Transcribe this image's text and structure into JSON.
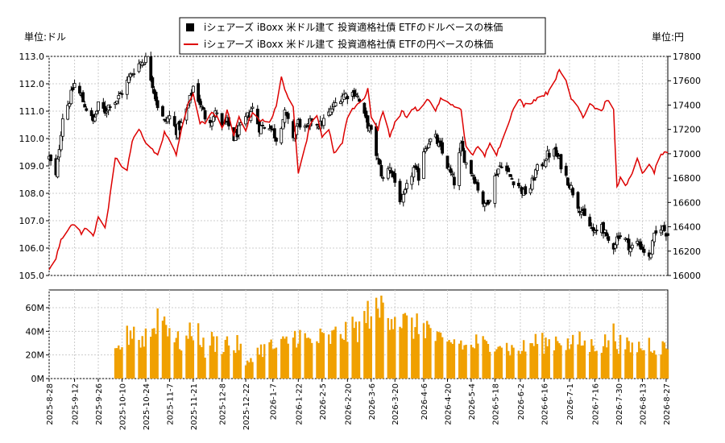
{
  "legend": {
    "items": [
      {
        "name": "iシェアーズ iBoxx 米ドル建て 投資適格社債 ETFのドルベースの株価",
        "color": "#000000",
        "marker": "square"
      },
      {
        "name": "iシェアーズ iBoxx 米ドル建て 投資適格社債 ETFの円ベースの株価",
        "color": "#dd0000",
        "marker": "line"
      }
    ]
  },
  "chart_data": [
    {
      "type": "candlestick+line",
      "left_unit_label": "単位:ドル",
      "right_unit_label": "単位:円",
      "ylim_left": [
        105.0,
        113.0
      ],
      "ylim_right": [
        16000,
        17800
      ],
      "yticks_left": [
        "105.0",
        "106.0",
        "107.0",
        "108.0",
        "109.0",
        "110.0",
        "111.0",
        "112.0",
        "113.0"
      ],
      "yticks_right": [
        "16000",
        "16200",
        "16400",
        "16600",
        "16800",
        "17000",
        "17200",
        "17400",
        "17600",
        "17800"
      ],
      "x_start": "2025-08-28",
      "x_end": "2026-08-28",
      "xticks": [
        "2025-8-28",
        "2025-9-12",
        "2025-9-26",
        "2025-10-10",
        "2025-10-24",
        "2025-11-7",
        "2025-11-21",
        "2025-12-8",
        "2025-12-22",
        "2026-1-7",
        "2026-1-22",
        "2026-2-5",
        "2026-2-20",
        "2026-3-6",
        "2026-3-20",
        "2026-4-6",
        "2026-4-20",
        "2026-5-4",
        "2026-5-18",
        "2026-6-2",
        "2026-6-16",
        "2026-7-1",
        "2026-7-16",
        "2026-7-30",
        "2026-8-13",
        "2026-8-27"
      ],
      "usd_close_keypoints": [
        [
          "2025-08-28",
          109.3
        ],
        [
          "2025-09-01",
          108.6
        ],
        [
          "2025-09-03",
          109.7
        ],
        [
          "2025-09-05",
          110.8
        ],
        [
          "2025-09-09",
          111.4
        ],
        [
          "2025-09-12",
          112.0
        ],
        [
          "2025-09-16",
          111.5
        ],
        [
          "2025-09-19",
          111.1
        ],
        [
          "2025-09-23",
          110.6
        ],
        [
          "2025-09-26",
          111.2
        ],
        [
          "2025-09-30",
          111.0
        ],
        [
          "2025-10-03",
          111.3
        ],
        [
          "2025-10-07",
          111.4
        ],
        [
          "2025-10-10",
          111.7
        ],
        [
          "2025-10-14",
          112.2
        ],
        [
          "2025-10-17",
          112.5
        ],
        [
          "2025-10-21",
          112.8
        ],
        [
          "2025-10-24",
          112.9
        ],
        [
          "2025-10-28",
          112.0
        ],
        [
          "2025-10-31",
          111.2
        ],
        [
          "2025-11-04",
          110.6
        ],
        [
          "2025-11-07",
          110.8
        ],
        [
          "2025-11-11",
          110.3
        ],
        [
          "2025-11-14",
          110.5
        ],
        [
          "2025-11-18",
          111.2
        ],
        [
          "2025-11-21",
          111.9
        ],
        [
          "2025-11-25",
          111.3
        ],
        [
          "2025-11-28",
          110.8
        ],
        [
          "2025-12-02",
          110.7
        ],
        [
          "2025-12-05",
          111.0
        ],
        [
          "2025-12-08",
          110.4
        ],
        [
          "2025-12-11",
          110.6
        ],
        [
          "2025-12-15",
          110.0
        ],
        [
          "2025-12-18",
          110.3
        ],
        [
          "2025-12-22",
          110.7
        ],
        [
          "2025-12-26",
          111.1
        ],
        [
          "2025-12-30",
          110.4
        ],
        [
          "2026-01-05",
          110.5
        ],
        [
          "2026-01-09",
          110.0
        ],
        [
          "2026-01-14",
          110.9
        ],
        [
          "2026-01-19",
          110.1
        ],
        [
          "2026-01-22",
          110.6
        ],
        [
          "2026-01-27",
          110.3
        ],
        [
          "2026-01-30",
          110.7
        ],
        [
          "2026-02-04",
          110.5
        ],
        [
          "2026-02-09",
          110.9
        ],
        [
          "2026-02-12",
          111.2
        ],
        [
          "2026-02-17",
          111.6
        ],
        [
          "2026-02-20",
          111.6
        ],
        [
          "2026-02-25",
          111.7
        ],
        [
          "2026-03-02",
          110.8
        ],
        [
          "2026-03-06",
          110.2
        ],
        [
          "2026-03-10",
          109.2
        ],
        [
          "2026-03-13",
          108.5
        ],
        [
          "2026-03-17",
          109.0
        ],
        [
          "2026-03-20",
          108.4
        ],
        [
          "2026-03-24",
          107.6
        ],
        [
          "2026-03-27",
          108.2
        ],
        [
          "2026-03-31",
          108.9
        ],
        [
          "2026-04-03",
          108.6
        ],
        [
          "2026-04-06",
          109.6
        ],
        [
          "2026-04-09",
          109.9
        ],
        [
          "2026-04-13",
          110.0
        ],
        [
          "2026-04-16",
          109.6
        ],
        [
          "2026-04-20",
          109.0
        ],
        [
          "2026-04-24",
          108.4
        ],
        [
          "2026-04-28",
          109.7
        ],
        [
          "2026-05-01",
          109.1
        ],
        [
          "2026-05-05",
          108.7
        ],
        [
          "2026-05-08",
          108.2
        ],
        [
          "2026-05-12",
          107.5
        ],
        [
          "2026-05-15",
          107.9
        ],
        [
          "2026-05-19",
          108.8
        ],
        [
          "2026-05-22",
          109.1
        ],
        [
          "2026-05-27",
          108.6
        ],
        [
          "2026-06-01",
          108.3
        ],
        [
          "2026-06-04",
          108.0
        ],
        [
          "2026-06-08",
          108.2
        ],
        [
          "2026-06-11",
          108.8
        ],
        [
          "2026-06-15",
          109.1
        ],
        [
          "2026-06-18",
          109.4
        ],
        [
          "2026-06-22",
          109.5
        ],
        [
          "2026-06-25",
          109.2
        ],
        [
          "2026-06-29",
          108.6
        ],
        [
          "2026-07-02",
          108.2
        ],
        [
          "2026-07-06",
          107.6
        ],
        [
          "2026-07-09",
          107.2
        ],
        [
          "2026-07-13",
          106.8
        ],
        [
          "2026-07-16",
          106.5
        ],
        [
          "2026-07-20",
          106.9
        ],
        [
          "2026-07-23",
          106.3
        ],
        [
          "2026-07-27",
          106.1
        ],
        [
          "2026-07-30",
          106.5
        ],
        [
          "2026-08-03",
          106.3
        ],
        [
          "2026-08-06",
          106.0
        ],
        [
          "2026-08-10",
          106.2
        ],
        [
          "2026-08-13",
          106.0
        ],
        [
          "2026-08-17",
          105.6
        ],
        [
          "2026-08-20",
          106.4
        ],
        [
          "2026-08-24",
          106.8
        ],
        [
          "2026-08-28",
          106.5
        ]
      ],
      "jpy_line_keypoints": [
        [
          "2025-08-28",
          16050
        ],
        [
          "2025-09-01",
          16150
        ],
        [
          "2025-09-04",
          16300
        ],
        [
          "2025-09-08",
          16380
        ],
        [
          "2025-09-12",
          16420
        ],
        [
          "2025-09-16",
          16350
        ],
        [
          "2025-09-19",
          16390
        ],
        [
          "2025-09-23",
          16320
        ],
        [
          "2025-09-26",
          16490
        ],
        [
          "2025-09-30",
          16400
        ],
        [
          "2025-10-02",
          16550
        ],
        [
          "2025-10-06",
          16970
        ],
        [
          "2025-10-09",
          16900
        ],
        [
          "2025-10-13",
          16870
        ],
        [
          "2025-10-16",
          17100
        ],
        [
          "2025-10-20",
          17200
        ],
        [
          "2025-10-24",
          17100
        ],
        [
          "2025-10-27",
          17050
        ],
        [
          "2025-10-31",
          16980
        ],
        [
          "2025-11-04",
          17180
        ],
        [
          "2025-11-07",
          17100
        ],
        [
          "2025-11-11",
          17000
        ],
        [
          "2025-11-14",
          17200
        ],
        [
          "2025-11-18",
          17400
        ],
        [
          "2025-11-21",
          17500
        ],
        [
          "2025-11-25",
          17250
        ],
        [
          "2025-11-28",
          17250
        ],
        [
          "2025-12-02",
          17350
        ],
        [
          "2025-12-05",
          17300
        ],
        [
          "2025-12-08",
          17200
        ],
        [
          "2025-12-11",
          17350
        ],
        [
          "2025-12-15",
          17150
        ],
        [
          "2025-12-18",
          17300
        ],
        [
          "2025-12-22",
          17200
        ],
        [
          "2025-12-26",
          17350
        ],
        [
          "2025-12-30",
          17280
        ],
        [
          "2026-01-05",
          17250
        ],
        [
          "2026-01-09",
          17400
        ],
        [
          "2026-01-12",
          17620
        ],
        [
          "2026-01-14",
          17520
        ],
        [
          "2026-01-19",
          17400
        ],
        [
          "2026-01-22",
          16850
        ],
        [
          "2026-01-26",
          17050
        ],
        [
          "2026-01-29",
          17250
        ],
        [
          "2026-02-02",
          17300
        ],
        [
          "2026-02-05",
          17150
        ],
        [
          "2026-02-09",
          17200
        ],
        [
          "2026-02-12",
          17000
        ],
        [
          "2026-02-17",
          17100
        ],
        [
          "2026-02-20",
          17300
        ],
        [
          "2026-02-25",
          17400
        ],
        [
          "2026-03-02",
          17450
        ],
        [
          "2026-03-04",
          17550
        ],
        [
          "2026-03-06",
          17300
        ],
        [
          "2026-03-10",
          17200
        ],
        [
          "2026-03-13",
          17350
        ],
        [
          "2026-03-17",
          17150
        ],
        [
          "2026-03-20",
          17250
        ],
        [
          "2026-03-24",
          17350
        ],
        [
          "2026-03-27",
          17300
        ],
        [
          "2026-03-31",
          17380
        ],
        [
          "2026-04-03",
          17350
        ],
        [
          "2026-04-06",
          17400
        ],
        [
          "2026-04-09",
          17450
        ],
        [
          "2026-04-13",
          17350
        ],
        [
          "2026-04-16",
          17450
        ],
        [
          "2026-04-20",
          17420
        ],
        [
          "2026-04-24",
          17400
        ],
        [
          "2026-04-28",
          17350
        ],
        [
          "2026-05-01",
          17050
        ],
        [
          "2026-05-05",
          17000
        ],
        [
          "2026-05-08",
          17050
        ],
        [
          "2026-05-12",
          16980
        ],
        [
          "2026-05-15",
          17100
        ],
        [
          "2026-05-19",
          17000
        ],
        [
          "2026-05-22",
          17100
        ],
        [
          "2026-05-27",
          17300
        ],
        [
          "2026-06-01",
          17450
        ],
        [
          "2026-06-04",
          17400
        ],
        [
          "2026-06-08",
          17420
        ],
        [
          "2026-06-11",
          17450
        ],
        [
          "2026-06-15",
          17480
        ],
        [
          "2026-06-18",
          17500
        ],
        [
          "2026-06-22",
          17600
        ],
        [
          "2026-06-25",
          17680
        ],
        [
          "2026-06-29",
          17600
        ],
        [
          "2026-07-02",
          17450
        ],
        [
          "2026-07-06",
          17400
        ],
        [
          "2026-07-09",
          17300
        ],
        [
          "2026-07-13",
          17420
        ],
        [
          "2026-07-16",
          17380
        ],
        [
          "2026-07-20",
          17350
        ],
        [
          "2026-07-23",
          17450
        ],
        [
          "2026-07-27",
          17350
        ],
        [
          "2026-07-29",
          16720
        ],
        [
          "2026-07-31",
          16800
        ],
        [
          "2026-08-03",
          16750
        ],
        [
          "2026-08-06",
          16800
        ],
        [
          "2026-08-10",
          16950
        ],
        [
          "2026-08-13",
          16850
        ],
        [
          "2026-08-17",
          16900
        ],
        [
          "2026-08-20",
          16850
        ],
        [
          "2026-08-24",
          17000
        ],
        [
          "2026-08-28",
          17000
        ]
      ]
    },
    {
      "type": "bar",
      "series_name": "volume",
      "color": "#f0a000",
      "ylim": [
        0,
        75
      ],
      "yticks": [
        "0M",
        "20M",
        "40M",
        "60M"
      ],
      "volume_start": "2025-10-06",
      "volume_keypoints_millions": [
        [
          "2025-10-06",
          20
        ],
        [
          "2025-10-10",
          30
        ],
        [
          "2025-10-14",
          37
        ],
        [
          "2025-10-17",
          45
        ],
        [
          "2025-10-21",
          30
        ],
        [
          "2025-10-24",
          38
        ],
        [
          "2025-10-28",
          40
        ],
        [
          "2025-10-31",
          55
        ],
        [
          "2025-11-03",
          52
        ],
        [
          "2025-11-07",
          45
        ],
        [
          "2025-11-11",
          32
        ],
        [
          "2025-11-14",
          30
        ],
        [
          "2025-11-18",
          34
        ],
        [
          "2025-11-21",
          42
        ],
        [
          "2025-11-25",
          38
        ],
        [
          "2025-11-28",
          22
        ],
        [
          "2025-12-02",
          32
        ],
        [
          "2025-12-05",
          30
        ],
        [
          "2025-12-08",
          28
        ],
        [
          "2025-12-11",
          32
        ],
        [
          "2025-12-15",
          25
        ],
        [
          "2025-12-18",
          30
        ],
        [
          "2025-12-22",
          10
        ],
        [
          "2025-12-26",
          20
        ],
        [
          "2025-12-30",
          24
        ],
        [
          "2026-01-05",
          28
        ],
        [
          "2026-01-09",
          25
        ],
        [
          "2026-01-14",
          30
        ],
        [
          "2026-01-19",
          35
        ],
        [
          "2026-01-22",
          38
        ],
        [
          "2026-01-27",
          32
        ],
        [
          "2026-01-30",
          30
        ],
        [
          "2026-02-04",
          34
        ],
        [
          "2026-02-09",
          32
        ],
        [
          "2026-02-12",
          36
        ],
        [
          "2026-02-17",
          40
        ],
        [
          "2026-02-20",
          38
        ],
        [
          "2026-02-25",
          42
        ],
        [
          "2026-03-02",
          48
        ],
        [
          "2026-03-06",
          60
        ],
        [
          "2026-03-10",
          52
        ],
        [
          "2026-03-13",
          65
        ],
        [
          "2026-03-17",
          58
        ],
        [
          "2026-03-20",
          54
        ],
        [
          "2026-03-24",
          50
        ],
        [
          "2026-03-27",
          45
        ],
        [
          "2026-03-31",
          44
        ],
        [
          "2026-04-03",
          42
        ],
        [
          "2026-04-06",
          48
        ],
        [
          "2026-04-09",
          42
        ],
        [
          "2026-04-13",
          35
        ],
        [
          "2026-04-16",
          30
        ],
        [
          "2026-04-20",
          28
        ],
        [
          "2026-04-24",
          32
        ],
        [
          "2026-04-28",
          30
        ],
        [
          "2026-05-01",
          26
        ],
        [
          "2026-05-05",
          28
        ],
        [
          "2026-05-08",
          32
        ],
        [
          "2026-05-12",
          28
        ],
        [
          "2026-05-15",
          25
        ],
        [
          "2026-05-19",
          35
        ],
        [
          "2026-05-22",
          30
        ],
        [
          "2026-05-27",
          25
        ],
        [
          "2026-06-01",
          24
        ],
        [
          "2026-06-04",
          26
        ],
        [
          "2026-06-08",
          28
        ],
        [
          "2026-06-11",
          32
        ],
        [
          "2026-06-15",
          30
        ],
        [
          "2026-06-18",
          30
        ],
        [
          "2026-06-22",
          32
        ],
        [
          "2026-06-25",
          35
        ],
        [
          "2026-06-29",
          30
        ],
        [
          "2026-07-02",
          28
        ],
        [
          "2026-07-06",
          32
        ],
        [
          "2026-07-09",
          30
        ],
        [
          "2026-07-13",
          27
        ],
        [
          "2026-07-16",
          30
        ],
        [
          "2026-07-20",
          28
        ],
        [
          "2026-07-23",
          32
        ],
        [
          "2026-07-27",
          38
        ],
        [
          "2026-07-30",
          30
        ],
        [
          "2026-08-03",
          28
        ],
        [
          "2026-08-06",
          25
        ],
        [
          "2026-08-10",
          28
        ],
        [
          "2026-08-13",
          26
        ],
        [
          "2026-08-17",
          30
        ],
        [
          "2026-08-20",
          28
        ],
        [
          "2026-08-24",
          26
        ],
        [
          "2026-08-28",
          27
        ]
      ]
    }
  ]
}
